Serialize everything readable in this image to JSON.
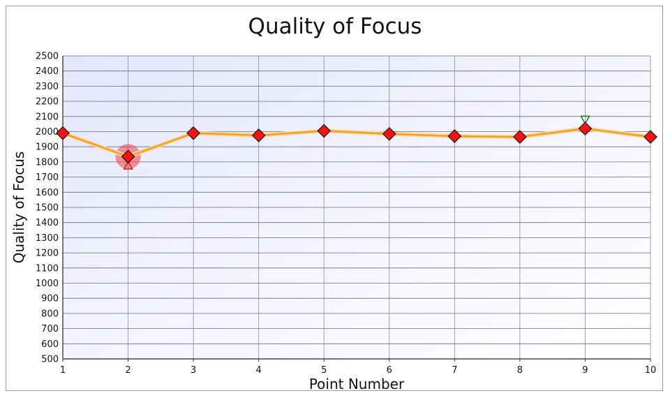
{
  "chart_data": {
    "type": "line",
    "title": "Quality of Focus",
    "xlabel": "Point Number",
    "ylabel": "Quality of Focus",
    "x": [
      1,
      2,
      3,
      4,
      5,
      6,
      7,
      8,
      9,
      10
    ],
    "xlim": [
      1,
      10
    ],
    "ylim": [
      500,
      2500
    ],
    "ytick_step": 100,
    "grid": true,
    "series": [
      {
        "values": [
          1990,
          1835,
          1990,
          1975,
          2005,
          1985,
          1970,
          1965,
          2020,
          1965
        ],
        "line_color": "#f0a020",
        "marker": "diamond",
        "marker_color": "#ff1010"
      }
    ],
    "highlight": {
      "x": 2,
      "value": 1835,
      "color": "#f04040"
    },
    "annotations": [
      {
        "x": 2,
        "value": 1775,
        "marker": "triangle-up",
        "color": "#e02020"
      },
      {
        "x": 9,
        "value": 2080,
        "marker": "triangle-down",
        "color": "#208020"
      }
    ]
  }
}
